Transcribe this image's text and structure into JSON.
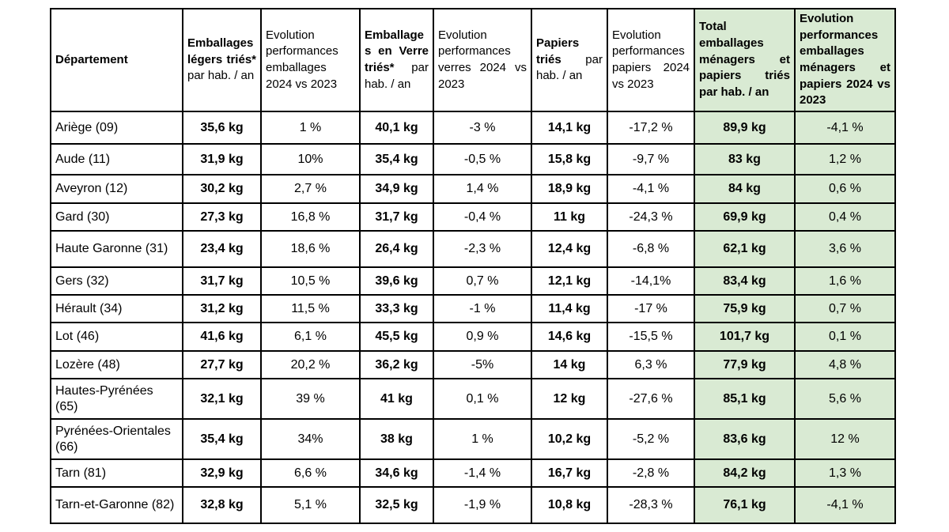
{
  "table": {
    "accent_green": "#d9ead3",
    "border_color": "#000000",
    "columns": [
      {
        "id": "departement",
        "header_bold": "Département",
        "header_regular": "",
        "green": false
      },
      {
        "id": "emballages_legers_tries",
        "header_bold": "Emballages légers triés*",
        "header_regular": " par hab. / an",
        "green": false
      },
      {
        "id": "evolution_emballages",
        "header_bold": "",
        "header_regular": "Evolution performances emballages 2024 vs 2023",
        "green": false
      },
      {
        "id": "emballages_verre_tries",
        "header_bold": "Emballages en Verre triés*",
        "header_regular": " par hab. / an",
        "green": false
      },
      {
        "id": "evolution_verres",
        "header_bold": "",
        "header_regular": "Evolution performances verres 2024 vs 2023",
        "green": false
      },
      {
        "id": "papiers_tries",
        "header_bold": "Papiers triés",
        "header_regular": " par hab. / an",
        "green": false
      },
      {
        "id": "evolution_papiers",
        "header_bold": "",
        "header_regular": "Evolution performances papiers 2024 vs 2023",
        "green": false
      },
      {
        "id": "total_emballages_papiers",
        "header_bold": "Total emballages ménagers et papiers triés par hab. / an",
        "header_regular": "",
        "green": true
      },
      {
        "id": "evolution_total",
        "header_bold": "Evolution performances emballages ménagers et papiers 2024 vs 2023",
        "header_regular": "",
        "green": true
      }
    ],
    "rows": [
      {
        "cells": [
          "Ariège (09)",
          "35,6 kg",
          "1 %",
          "40,1 kg",
          "-3 %",
          "14,1 kg",
          "-17,2 %",
          "89,9 kg",
          "-4,1 %"
        ]
      },
      {
        "cells": [
          "Aude (11)",
          "31,9 kg",
          "10%",
          "35,4 kg",
          "-0,5 %",
          "15,8 kg",
          "-9,7 %",
          "83 kg",
          "1,2 %"
        ]
      },
      {
        "cells": [
          "Aveyron (12)",
          "30,2 kg",
          "2,7 %",
          "34,9 kg",
          "1,4 %",
          "18,9 kg",
          "-4,1 %",
          "84 kg",
          "0,6 %"
        ]
      },
      {
        "cells": [
          "Gard (30)",
          "27,3 kg",
          "16,8 %",
          "31,7 kg",
          "-0,4 %",
          "11 kg",
          "-24,3 %",
          "69,9 kg",
          "0,4 %"
        ]
      },
      {
        "cells": [
          "Haute Garonne (31)",
          "23,4 kg",
          "18,6 %",
          "26,4 kg",
          "-2,3 %",
          "12,4 kg",
          "-6,8 %",
          "62,1 kg",
          "3,6 %"
        ]
      },
      {
        "cells": [
          "Gers (32)",
          "31,7 kg",
          "10,5 %",
          "39,6 kg",
          "0,7 %",
          "12,1 kg",
          "-14,1%",
          "83,4 kg",
          "1,6 %"
        ]
      },
      {
        "cells": [
          "Hérault (34)",
          "31,2 kg",
          "11,5 %",
          "33,3 kg",
          "-1 %",
          "11,4 kg",
          "-17 %",
          "75,9 kg",
          "0,7 %"
        ]
      },
      {
        "cells": [
          "Lot (46)",
          "41,6 kg",
          "6,1 %",
          "45,5 kg",
          "0,9 %",
          "14,6 kg",
          "-15,5 %",
          "101,7 kg",
          "0,1 %"
        ]
      },
      {
        "cells": [
          "Lozère (48)",
          "27,7 kg",
          "20,2 %",
          "36,2 kg",
          "-5%",
          "14 kg",
          "6,3 %",
          "77,9 kg",
          "4,8 %"
        ]
      },
      {
        "cells": [
          "Hautes-Pyrénées (65)",
          "32,1 kg",
          "39 %",
          "41 kg",
          "0,1 %",
          "12 kg",
          "-27,6 %",
          "85,1 kg",
          "5,6 %"
        ]
      },
      {
        "cells": [
          "Pyrénées-Orientales (66)",
          "35,4 kg",
          "34%",
          "38 kg",
          "1 %",
          "10,2 kg",
          "-5,2 %",
          "83,6 kg",
          "12 %"
        ]
      },
      {
        "cells": [
          "Tarn (81)",
          "32,9 kg",
          "6,6 %",
          "34,6 kg",
          "-1,4 %",
          "16,7 kg",
          "-2,8 %",
          "84,2 kg",
          "1,3 %"
        ]
      },
      {
        "cells": [
          "Tarn-et-Garonne (82)",
          "32,8 kg",
          "5,1 %",
          "32,5 kg",
          "-1,9 %",
          "10,8 kg",
          "-28,3 %",
          "76,1 kg",
          "-4,1 %"
        ]
      }
    ]
  }
}
